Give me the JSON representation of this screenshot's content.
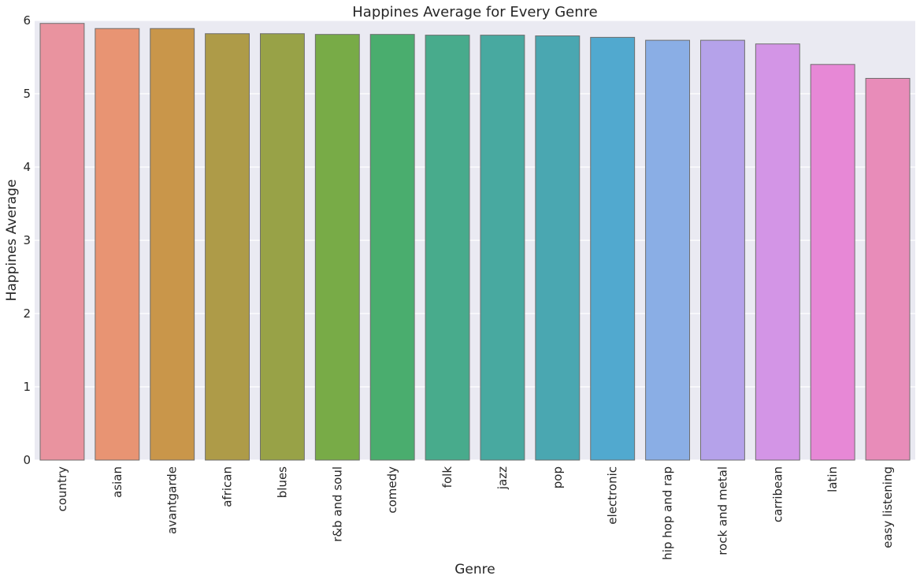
{
  "chart_data": {
    "type": "bar",
    "title": "Happines Average for Every Genre",
    "xlabel": "Genre",
    "ylabel": "Happines Average",
    "ylim": [
      0,
      6
    ],
    "yticks": [
      0,
      1,
      2,
      3,
      4,
      5,
      6
    ],
    "grid": true,
    "categories": [
      "country",
      "asian",
      "avantgarde",
      "african",
      "blues",
      "r&b and soul",
      "comedy",
      "folk",
      "jazz",
      "pop",
      "electronic",
      "hip hop and rap",
      "rock and metal",
      "carribean",
      "latin",
      "easy listening"
    ],
    "values": [
      5.96,
      5.89,
      5.89,
      5.82,
      5.82,
      5.81,
      5.81,
      5.8,
      5.8,
      5.79,
      5.77,
      5.73,
      5.73,
      5.68,
      5.4,
      5.21
    ],
    "colors": [
      "#e9939f",
      "#e89473",
      "#c9964a",
      "#ae9b48",
      "#98a247",
      "#78ab47",
      "#4aad6e",
      "#48ab8c",
      "#48a9a0",
      "#4aa7b1",
      "#51a9cf",
      "#8aaee5",
      "#b5a2ea",
      "#d395e6",
      "#e788d6",
      "#e88cb9"
    ],
    "plot_background": "#eaeaf2",
    "grid_color": "#ffffff"
  }
}
